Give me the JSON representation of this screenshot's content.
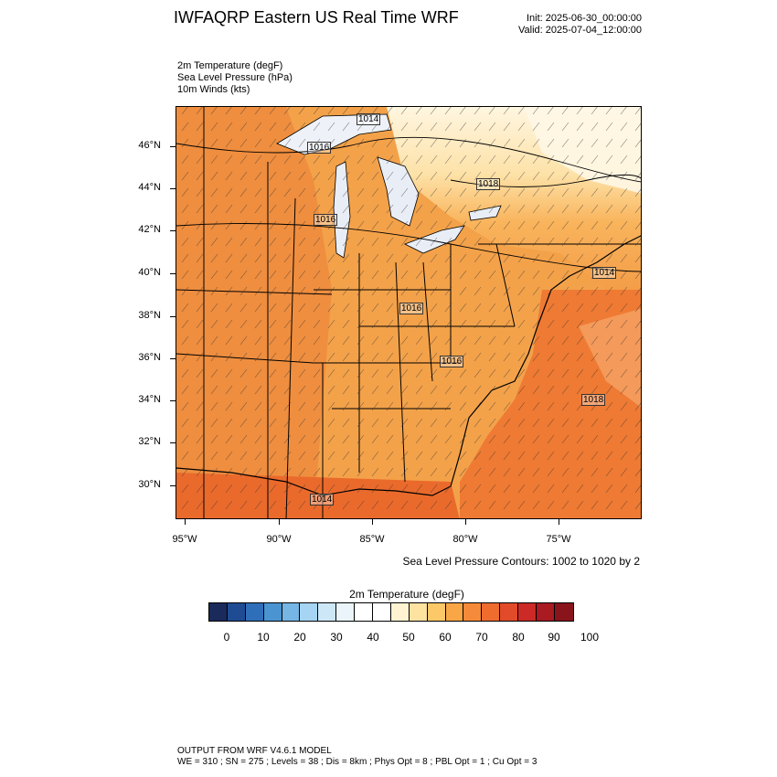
{
  "header": {
    "title": "IWFAQRP Eastern US Real Time WRF",
    "init": "Init: 2025-06-30_00:00:00",
    "valid": "Valid: 2025-07-04_12:00:00"
  },
  "fields": [
    "2m Temperature   (degF)",
    "Sea Level Pressure   (hPa)",
    "10m Winds   (kts)"
  ],
  "map": {
    "lat_labels": [
      "46°N",
      "44°N",
      "42°N",
      "40°N",
      "38°N",
      "36°N",
      "34°N",
      "32°N",
      "30°N"
    ],
    "lon_labels": [
      "95°W",
      "90°W",
      "85°W",
      "80°W",
      "75°W"
    ],
    "slp_labels": [
      "1014",
      "1016",
      "1018",
      "1016",
      "1014",
      "1016",
      "1016",
      "1018",
      "1014"
    ],
    "contour_note": "Sea Level Pressure Contours: 1002 to 1020 by 2"
  },
  "colorbar": {
    "title": "2m Temperature  (degF)",
    "colors": [
      "#1a2a5a",
      "#1f4b93",
      "#2f6fb9",
      "#4a94d2",
      "#75b6e4",
      "#a5d5f2",
      "#cde7f7",
      "#eaf4fa",
      "#ffffff",
      "#ffffff",
      "#fff3d1",
      "#fde2a0",
      "#fcc868",
      "#f9a646",
      "#f58b3a",
      "#ef6c2f",
      "#e24b2a",
      "#cb2a26",
      "#a91a21",
      "#8a141c"
    ],
    "labels": [
      "0",
      "10",
      "20",
      "30",
      "40",
      "50",
      "60",
      "70",
      "80",
      "90",
      "100"
    ]
  },
  "footer": {
    "line1": "OUTPUT FROM WRF V4.6.1 MODEL",
    "line2": "WE = 310 ; SN = 275 ; Levels = 38 ; Dis = 8km ; Phys Opt = 8 ; PBL Opt = 1 ; Cu Opt = 3"
  }
}
